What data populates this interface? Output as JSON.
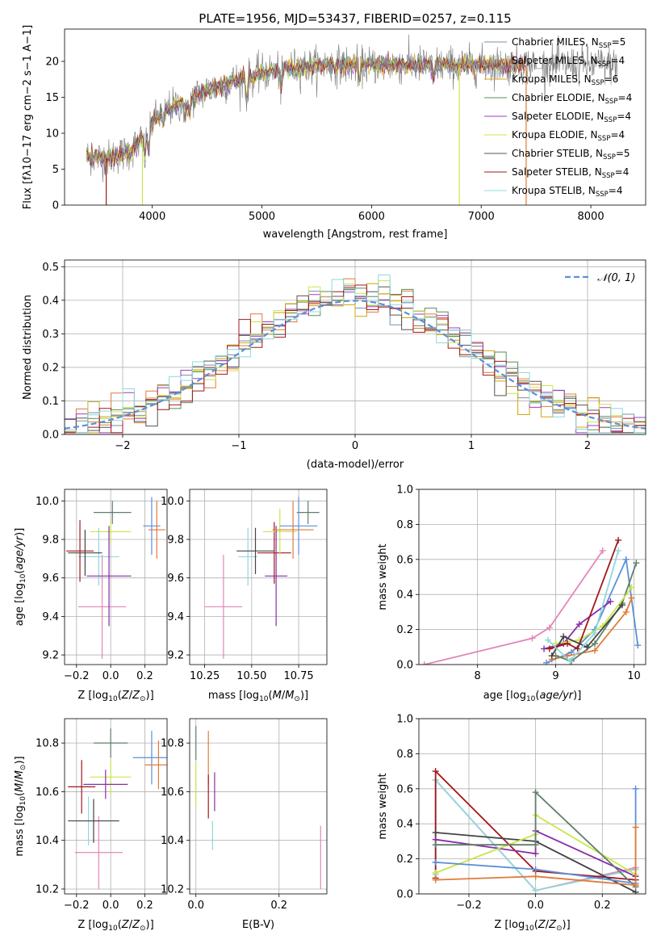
{
  "figure_title": "PLATE=1956, MJD=53437, FIBERID=0257, z=0.115",
  "colors": [
    "#7a8fa8",
    "#e07b39",
    "#d3a40f",
    "#5a8a5a",
    "#9b3fbf",
    "#c9e64a",
    "#555555",
    "#a0181c",
    "#8fd8dc"
  ],
  "accent_colors": {
    "normal_dist": "#5b8fd8",
    "pink": "#e287b8",
    "blue": "#5b8fd8",
    "orange": "#e07b39",
    "gray_green": "#5f7f6a",
    "purple": "#8a2da8",
    "lime": "#c9e64a",
    "dark": "#444444",
    "red": "#a0181c",
    "cyan": "#8fd8dc"
  },
  "chart_data": [
    {
      "id": "spectrum",
      "type": "line",
      "title": "",
      "xlabel": "wavelength [Angstrom, rest frame]",
      "ylabel": "Flux [f_λ 10^-17 erg cm^-2 s^-1 A^-1]",
      "ylabel_text": "Flux [fλ10−17 erg cm−2 s−1 A−1]",
      "xlim": [
        3200,
        8500
      ],
      "ylim": [
        0,
        24.5
      ],
      "xticks": [
        4000,
        5000,
        6000,
        7000,
        8000
      ],
      "yticks": [
        0,
        5,
        10,
        15,
        20
      ],
      "continuum_x": [
        3400,
        3600,
        3800,
        3950,
        4000,
        4100,
        4300,
        4500,
        4800,
        5200,
        5600,
        6000,
        6500,
        7000,
        7400,
        7800,
        8200
      ],
      "continuum_y": [
        6.8,
        6.5,
        7.5,
        10.0,
        11.5,
        13.0,
        14.5,
        16.0,
        17.5,
        19.0,
        19.5,
        19.5,
        19.5,
        19.5,
        19.5,
        19.5,
        19.5
      ],
      "series": [
        {
          "name": "Chabrier MILES, N_SSP=5",
          "label": "Chabrier MILES, N",
          "sub": "SSP",
          "tail": "=5"
        },
        {
          "name": "Salpeter MILES, N_SSP=4",
          "label": "Salpeter MILES, N",
          "sub": "SSP",
          "tail": "=4"
        },
        {
          "name": "Kroupa MILES, N_SSP=6",
          "label": "Kroupa MILES, N",
          "sub": "SSP",
          "tail": "=6"
        },
        {
          "name": "Chabrier ELODIE, N_SSP=4",
          "label": "Chabrier ELODIE, N",
          "sub": "SSP",
          "tail": "=4"
        },
        {
          "name": "Salpeter ELODIE, N_SSP=4",
          "label": "Salpeter ELODIE, N",
          "sub": "SSP",
          "tail": "=4"
        },
        {
          "name": "Kroupa ELODIE, N_SSP=4",
          "label": "Kroupa ELODIE, N",
          "sub": "SSP",
          "tail": "=4"
        },
        {
          "name": "Chabrier STELIB, N_SSP=5",
          "label": "Chabrier STELIB, N",
          "sub": "SSP",
          "tail": "=5"
        },
        {
          "name": "Salpeter STELIB, N_SSP=4",
          "label": "Salpeter STELIB, N",
          "sub": "SSP",
          "tail": "=4"
        },
        {
          "name": "Kroupa STELIB, N_SSP=4",
          "label": "Kroupa STELIB, N",
          "sub": "SSP",
          "tail": "=4"
        }
      ],
      "legend": "top-right"
    },
    {
      "id": "residuals",
      "type": "histogram",
      "xlabel": "(data-model)/error",
      "ylabel": "Normed distribution",
      "xlim": [
        -2.5,
        2.5
      ],
      "ylim": [
        0,
        0.52
      ],
      "xticks": [
        -2,
        -1,
        0,
        1,
        2
      ],
      "yticks": [
        0.0,
        0.1,
        0.2,
        0.3,
        0.4,
        0.5
      ],
      "bin_width": 0.1,
      "reference": {
        "name": "N(0,1)",
        "label": "𝒩(0, 1)",
        "mean": 0,
        "sigma": 1
      },
      "grid": true,
      "legend": "top-right"
    },
    {
      "id": "age_vs_Z",
      "type": "scatter",
      "xlabel": "Z [log10(Z/Z⊙)]",
      "ylabel": "age [log10(age/yr)]",
      "xlim": [
        -0.27,
        0.33
      ],
      "ylim": [
        9.15,
        10.06
      ],
      "xticks": [
        -0.2,
        0.0,
        0.2
      ],
      "yticks": [
        9.2,
        9.4,
        9.6,
        9.8,
        10.0
      ],
      "points": [
        {
          "x": -0.05,
          "y": 9.45,
          "xerr": 0.14,
          "yerr": 0.27,
          "c": "#e287b8"
        },
        {
          "x": -0.07,
          "y": 9.71,
          "xerr": 0.12,
          "yerr": 0.15,
          "c": "#8fd8dc"
        },
        {
          "x": -0.18,
          "y": 9.74,
          "xerr": 0.08,
          "yerr": 0.16,
          "c": "#a0181c"
        },
        {
          "x": -0.15,
          "y": 9.73,
          "xerr": 0.1,
          "yerr": 0.12,
          "c": "#444444"
        },
        {
          "x": 0.01,
          "y": 9.94,
          "xerr": 0.11,
          "yerr": 0.06,
          "c": "#5f7f6a"
        },
        {
          "x": 0.0,
          "y": 9.84,
          "xerr": 0.12,
          "yerr": 0.06,
          "c": "#c9e64a"
        },
        {
          "x": -0.01,
          "y": 9.61,
          "xerr": 0.13,
          "yerr": 0.26,
          "c": "#8a2da8"
        },
        {
          "x": 0.24,
          "y": 9.87,
          "xerr": 0.05,
          "yerr": 0.15,
          "c": "#5b8fd8"
        },
        {
          "x": 0.27,
          "y": 9.85,
          "xerr": 0.05,
          "yerr": 0.15,
          "c": "#e07b39"
        }
      ]
    },
    {
      "id": "age_vs_mass",
      "type": "scatter",
      "xlabel": "mass [log10(M/M⊙)]",
      "ylabel": "",
      "xlim": [
        10.17,
        10.9
      ],
      "ylim": [
        9.15,
        10.06
      ],
      "xticks": [
        10.25,
        10.5,
        10.75
      ],
      "yticks": [
        9.2,
        9.4,
        9.6,
        9.8,
        10.0
      ],
      "points": [
        {
          "x": 10.35,
          "y": 9.45,
          "xerr": 0.1,
          "yerr": 0.27,
          "c": "#e287b8"
        },
        {
          "x": 10.48,
          "y": 9.71,
          "xerr": 0.05,
          "yerr": 0.15,
          "c": "#8fd8dc"
        },
        {
          "x": 10.62,
          "y": 9.73,
          "xerr": 0.09,
          "yerr": 0.16,
          "c": "#a0181c"
        },
        {
          "x": 10.52,
          "y": 9.74,
          "xerr": 0.1,
          "yerr": 0.12,
          "c": "#444444"
        },
        {
          "x": 10.8,
          "y": 9.94,
          "xerr": 0.06,
          "yerr": 0.06,
          "c": "#5f7f6a"
        },
        {
          "x": 10.65,
          "y": 9.84,
          "xerr": 0.09,
          "yerr": 0.12,
          "c": "#c9e64a"
        },
        {
          "x": 10.63,
          "y": 9.61,
          "xerr": 0.06,
          "yerr": 0.26,
          "c": "#8a2da8"
        },
        {
          "x": 10.75,
          "y": 9.87,
          "xerr": 0.1,
          "yerr": 0.15,
          "c": "#5b8fd8"
        },
        {
          "x": 10.72,
          "y": 9.85,
          "xerr": 0.11,
          "yerr": 0.15,
          "c": "#e07b39"
        }
      ]
    },
    {
      "id": "weight_vs_age",
      "type": "line",
      "xlabel": "age [log10(age/yr)]",
      "ylabel": "mass weight",
      "xlim": [
        7.25,
        10.15
      ],
      "ylim": [
        0,
        1.0
      ],
      "xticks": [
        8,
        9,
        10
      ],
      "yticks": [
        0.0,
        0.2,
        0.4,
        0.6,
        0.8,
        1.0
      ],
      "series": [
        {
          "c": "#e287b8",
          "x": [
            7.32,
            8.7,
            8.92,
            9.6
          ],
          "y": [
            0.0,
            0.15,
            0.21,
            0.65
          ]
        },
        {
          "c": "#5b8fd8",
          "x": [
            8.88,
            9.2,
            9.5,
            9.9,
            10.05
          ],
          "y": [
            0.01,
            0.07,
            0.2,
            0.6,
            0.11
          ]
        },
        {
          "c": "#e07b39",
          "x": [
            8.95,
            9.15,
            9.5,
            9.9,
            9.97
          ],
          "y": [
            0.03,
            0.05,
            0.08,
            0.3,
            0.38
          ]
        },
        {
          "c": "#5f7f6a",
          "x": [
            9.0,
            9.2,
            9.5,
            9.85,
            10.03
          ],
          "y": [
            0.05,
            0.02,
            0.12,
            0.35,
            0.58
          ]
        },
        {
          "c": "#8a2da8",
          "x": [
            8.85,
            9.1,
            9.3,
            9.7
          ],
          "y": [
            0.09,
            0.12,
            0.23,
            0.36
          ]
        },
        {
          "c": "#c9e64a",
          "x": [
            9.0,
            9.3,
            9.6,
            9.97
          ],
          "y": [
            0.12,
            0.14,
            0.22,
            0.44
          ]
        },
        {
          "c": "#444444",
          "x": [
            8.95,
            9.1,
            9.4,
            9.85
          ],
          "y": [
            0.05,
            0.16,
            0.1,
            0.34
          ]
        },
        {
          "c": "#a0181c",
          "x": [
            8.92,
            9.15,
            9.28,
            9.8
          ],
          "y": [
            0.09,
            0.12,
            0.09,
            0.71
          ]
        },
        {
          "c": "#8fd8dc",
          "x": [
            8.9,
            9.18,
            9.5,
            9.8
          ],
          "y": [
            0.14,
            0.02,
            0.18,
            0.65
          ]
        }
      ]
    },
    {
      "id": "mass_vs_Z",
      "type": "scatter",
      "xlabel": "Z [log10(Z/Z⊙)]",
      "ylabel": "mass [log10(M/M⊙)]",
      "xlim": [
        -0.27,
        0.33
      ],
      "ylim": [
        10.18,
        10.9
      ],
      "xticks": [
        -0.2,
        0.0,
        0.2
      ],
      "yticks": [
        10.2,
        10.4,
        10.6,
        10.8
      ],
      "points": [
        {
          "x": -0.07,
          "y": 10.35,
          "xerr": 0.14,
          "yerr": 0.15,
          "c": "#e287b8"
        },
        {
          "x": -0.13,
          "y": 10.48,
          "xerr": 0.07,
          "yerr": 0.1,
          "c": "#8fd8dc"
        },
        {
          "x": -0.17,
          "y": 10.62,
          "xerr": 0.08,
          "yerr": 0.11,
          "c": "#a0181c"
        },
        {
          "x": -0.1,
          "y": 10.48,
          "xerr": 0.15,
          "yerr": 0.09,
          "c": "#444444"
        },
        {
          "x": 0.0,
          "y": 10.8,
          "xerr": 0.1,
          "yerr": 0.06,
          "c": "#5f7f6a"
        },
        {
          "x": 0.0,
          "y": 10.66,
          "xerr": 0.12,
          "yerr": 0.07,
          "c": "#c9e64a"
        },
        {
          "x": -0.03,
          "y": 10.63,
          "xerr": 0.13,
          "yerr": 0.06,
          "c": "#8a2da8"
        },
        {
          "x": 0.24,
          "y": 10.74,
          "xerr": 0.11,
          "yerr": 0.11,
          "c": "#5b8fd8"
        },
        {
          "x": 0.28,
          "y": 10.71,
          "xerr": 0.08,
          "yerr": 0.1,
          "c": "#e07b39"
        }
      ]
    },
    {
      "id": "mass_vs_ebv",
      "type": "scatter",
      "xlabel": "E(B-V)",
      "ylabel": "",
      "xlim": [
        -0.015,
        0.315
      ],
      "ylim": [
        10.18,
        10.9
      ],
      "xticks": [
        0.0,
        0.2
      ],
      "yticks": [
        10.2,
        10.4,
        10.6,
        10.8
      ],
      "points": [
        {
          "x": 0.0,
          "y": 10.8,
          "xerr": 0,
          "yerr": 0.07,
          "c": "#5f7f6a"
        },
        {
          "x": 0.0,
          "y": 10.63,
          "xerr": 0,
          "yerr": 0.09,
          "c": "#c9e64a"
        },
        {
          "x": 0.03,
          "y": 10.74,
          "xerr": 0,
          "yerr": 0.11,
          "c": "#e07b39"
        },
        {
          "x": 0.03,
          "y": 10.58,
          "xerr": 0,
          "yerr": 0.09,
          "c": "#a0181c"
        },
        {
          "x": 0.04,
          "y": 10.42,
          "xerr": 0,
          "yerr": 0.06,
          "c": "#8fd8dc"
        },
        {
          "x": 0.045,
          "y": 10.6,
          "xerr": 0,
          "yerr": 0.08,
          "c": "#8a2da8"
        },
        {
          "x": 0.3,
          "y": 10.33,
          "xerr": 0,
          "yerr": 0.13,
          "c": "#e287b8"
        }
      ]
    },
    {
      "id": "weight_vs_Z",
      "type": "line",
      "xlabel": "Z [log10(Z/Z⊙)]",
      "ylabel": "mass weight",
      "xlim": [
        -0.35,
        0.33
      ],
      "ylim": [
        0,
        1.0
      ],
      "xticks": [
        -0.2,
        0.0,
        0.2
      ],
      "yticks": [
        0.0,
        0.2,
        0.4,
        0.6,
        0.8,
        1.0
      ],
      "series": [
        {
          "c": "#e287b8",
          "x": [
            -0.3,
            -0.3,
            0.0,
            0.3
          ],
          "y": [
            0.18,
            0.65,
            0.02,
            0.15
          ]
        },
        {
          "c": "#8fd8dc",
          "x": [
            -0.3,
            -0.3,
            0.0,
            0.3
          ],
          "y": [
            0.11,
            0.65,
            0.02,
            0.14
          ]
        },
        {
          "c": "#a0181c",
          "x": [
            -0.3,
            -0.3,
            0.0,
            0.3
          ],
          "y": [
            0.09,
            0.7,
            0.13,
            0.08
          ]
        },
        {
          "c": "#444444",
          "x": [
            -0.3,
            0.0,
            0.3
          ],
          "y": [
            0.35,
            0.3,
            0.01
          ]
        },
        {
          "c": "#8a2da8",
          "x": [
            -0.3,
            0.0,
            0.0,
            0.3
          ],
          "y": [
            0.31,
            0.23,
            0.36,
            0.1
          ]
        },
        {
          "c": "#c9e64a",
          "x": [
            -0.3,
            0.0,
            0.0,
            0.3
          ],
          "y": [
            0.12,
            0.34,
            0.45,
            0.11
          ]
        },
        {
          "c": "#5f7f6a",
          "x": [
            -0.3,
            0.0,
            0.0,
            0.3
          ],
          "y": [
            0.28,
            0.28,
            0.58,
            0.04
          ]
        },
        {
          "c": "#5b8fd8",
          "x": [
            -0.3,
            0.0,
            0.3,
            0.3
          ],
          "y": [
            0.18,
            0.14,
            0.06,
            0.6
          ]
        },
        {
          "c": "#e07b39",
          "x": [
            -0.3,
            0.0,
            0.3,
            0.3
          ],
          "y": [
            0.08,
            0.1,
            0.05,
            0.38
          ]
        }
      ]
    }
  ]
}
